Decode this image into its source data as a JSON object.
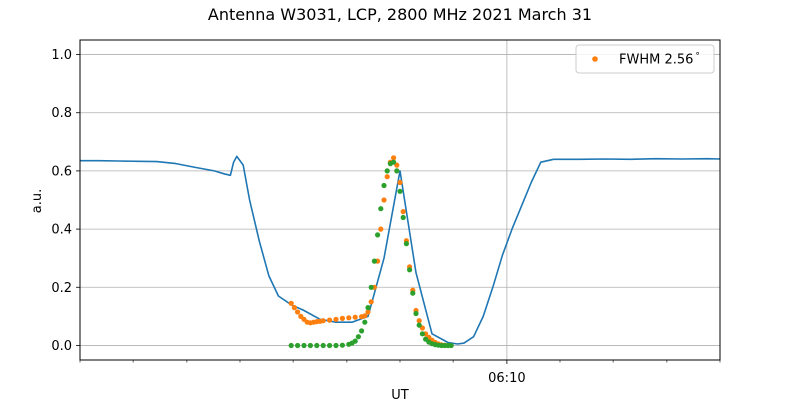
{
  "chart_data": {
    "type": "line",
    "title": "Antenna W3031, LCP, 2800 MHz 2021 March 31",
    "xlabel": "UT",
    "ylabel": "a.u.",
    "xlim": [
      0,
      1
    ],
    "ylim": [
      -0.05,
      1.05
    ],
    "grid": true,
    "legend_position": "top-right",
    "x_ticks": [
      {
        "x": 0.667,
        "label": "06:10"
      }
    ],
    "x_minor_ticks": [
      0,
      0.083,
      0.167,
      0.25,
      0.333,
      0.417,
      0.5,
      0.583,
      0.75,
      0.833,
      0.917,
      1.0
    ],
    "y_ticks": [
      {
        "y": 0.0,
        "label": "0.0"
      },
      {
        "y": 0.2,
        "label": "0.2"
      },
      {
        "y": 0.4,
        "label": "0.4"
      },
      {
        "y": 0.6,
        "label": "0.6"
      },
      {
        "y": 0.8,
        "label": "0.8"
      },
      {
        "y": 1.0,
        "label": "1.0"
      }
    ],
    "series": [
      {
        "style": "line",
        "color": "#1f77b4",
        "x": [
          0.0,
          0.03,
          0.06,
          0.09,
          0.12,
          0.15,
          0.18,
          0.21,
          0.225,
          0.235,
          0.24,
          0.245,
          0.255,
          0.265,
          0.28,
          0.295,
          0.31,
          0.33,
          0.35,
          0.375,
          0.4,
          0.425,
          0.45,
          0.475,
          0.5,
          0.525,
          0.55,
          0.575,
          0.59,
          0.6,
          0.615,
          0.63,
          0.645,
          0.66,
          0.675,
          0.69,
          0.705,
          0.72,
          0.74,
          0.78,
          0.82,
          0.86,
          0.9,
          0.94,
          0.98,
          1.0
        ],
        "y": [
          0.635,
          0.635,
          0.634,
          0.633,
          0.632,
          0.625,
          0.612,
          0.6,
          0.59,
          0.585,
          0.63,
          0.65,
          0.62,
          0.5,
          0.36,
          0.24,
          0.17,
          0.14,
          0.12,
          0.09,
          0.08,
          0.08,
          0.1,
          0.3,
          0.6,
          0.25,
          0.04,
          0.01,
          0.005,
          0.008,
          0.03,
          0.1,
          0.2,
          0.31,
          0.4,
          0.48,
          0.56,
          0.63,
          0.64,
          0.64,
          0.641,
          0.64,
          0.642,
          0.641,
          0.642,
          0.641
        ]
      },
      {
        "style": "markers",
        "name": "FWHM 2.56$^\\circ$",
        "legend_label": "FWHM 2.56",
        "legend_suffix": "°",
        "color": "#ff7f0e",
        "x": [
          0.33,
          0.335,
          0.34,
          0.345,
          0.35,
          0.355,
          0.36,
          0.365,
          0.37,
          0.375,
          0.38,
          0.39,
          0.4,
          0.41,
          0.42,
          0.43,
          0.44,
          0.445,
          0.45,
          0.455,
          0.46,
          0.465,
          0.47,
          0.475,
          0.48,
          0.485,
          0.49,
          0.495,
          0.5,
          0.505,
          0.51,
          0.515,
          0.52,
          0.525,
          0.53,
          0.535,
          0.54,
          0.545,
          0.55,
          0.555,
          0.56,
          0.565,
          0.57,
          0.575
        ],
        "y": [
          0.145,
          0.13,
          0.115,
          0.1,
          0.09,
          0.08,
          0.078,
          0.08,
          0.082,
          0.083,
          0.085,
          0.087,
          0.09,
          0.093,
          0.095,
          0.097,
          0.099,
          0.102,
          0.115,
          0.15,
          0.2,
          0.29,
          0.4,
          0.5,
          0.58,
          0.63,
          0.645,
          0.62,
          0.56,
          0.46,
          0.36,
          0.27,
          0.19,
          0.12,
          0.085,
          0.06,
          0.04,
          0.028,
          0.018,
          0.01,
          0.005,
          0.002,
          0.001,
          0.0
        ]
      },
      {
        "style": "markers",
        "color": "#2ca02c",
        "x": [
          0.33,
          0.34,
          0.35,
          0.36,
          0.37,
          0.38,
          0.39,
          0.4,
          0.41,
          0.42,
          0.425,
          0.43,
          0.435,
          0.44,
          0.445,
          0.45,
          0.455,
          0.46,
          0.465,
          0.47,
          0.475,
          0.48,
          0.485,
          0.49,
          0.495,
          0.5,
          0.505,
          0.51,
          0.515,
          0.52,
          0.525,
          0.53,
          0.535,
          0.54,
          0.545,
          0.55,
          0.555,
          0.56,
          0.565,
          0.57,
          0.575,
          0.58
        ],
        "y": [
          0.0,
          0.0,
          0.0,
          0.0,
          0.0,
          0.0,
          0.0,
          0.0,
          0.001,
          0.004,
          0.008,
          0.015,
          0.03,
          0.05,
          0.08,
          0.13,
          0.2,
          0.29,
          0.38,
          0.47,
          0.55,
          0.6,
          0.625,
          0.63,
          0.6,
          0.53,
          0.44,
          0.35,
          0.26,
          0.18,
          0.11,
          0.07,
          0.04,
          0.022,
          0.012,
          0.006,
          0.003,
          0.001,
          0.0,
          0.0,
          0.0,
          0.0
        ]
      }
    ]
  }
}
